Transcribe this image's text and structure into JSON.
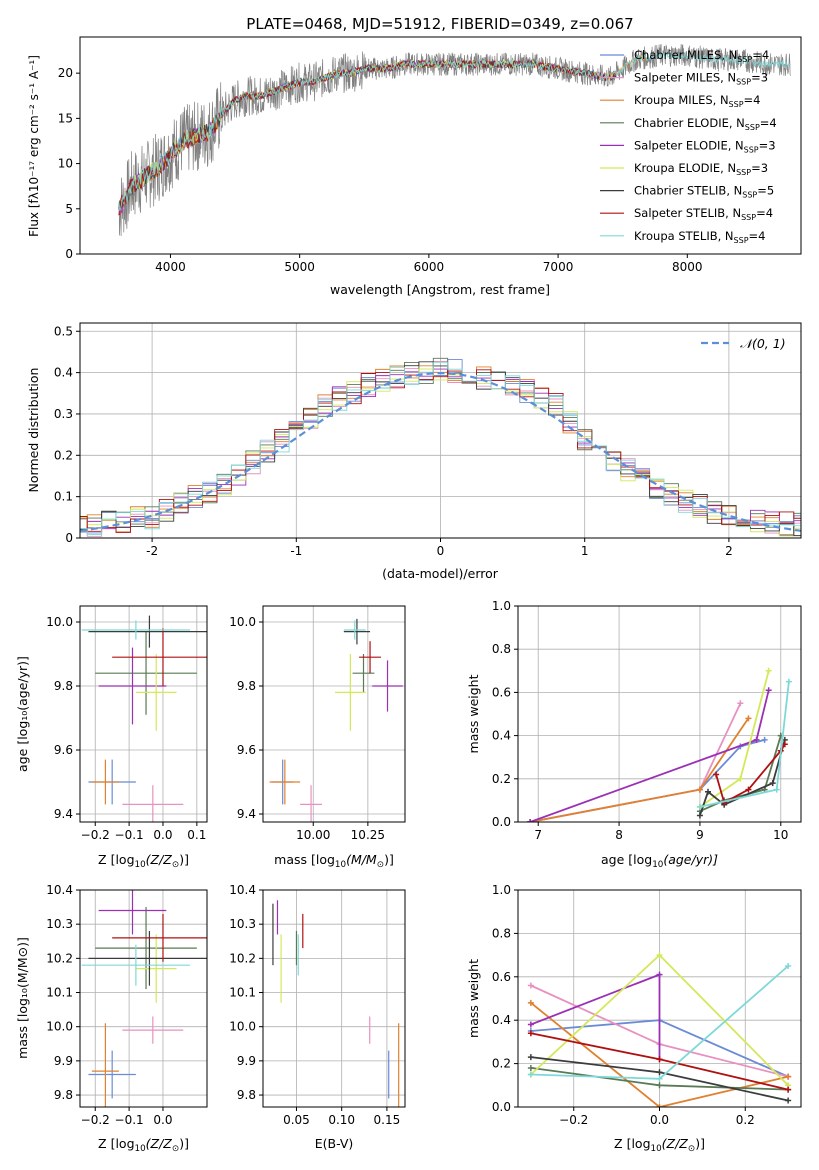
{
  "figure": {
    "title": "PLATE=0468, MJD=51912, FIBERID=0349, z=0.067"
  },
  "models": [
    {
      "label": "Chabrier MILES, N$_{SSP}$=4",
      "main": "Chabrier MILES, N",
      "sub": "SSP",
      "tail": "=4",
      "color": "#6b8bd6"
    },
    {
      "label": "Salpeter MILES, N$_{SSP}$=3",
      "main": "Salpeter MILES, N",
      "sub": "SSP",
      "tail": "=3",
      "color": "#e891c0"
    },
    {
      "label": "Kroupa MILES, N$_{SSP}$=4",
      "main": "Kroupa MILES, N",
      "sub": "SSP",
      "tail": "=4",
      "color": "#e0812f"
    },
    {
      "label": "Chabrier ELODIE, N$_{SSP}$=4",
      "main": "Chabrier ELODIE, N",
      "sub": "SSP",
      "tail": "=4",
      "color": "#5a7a55"
    },
    {
      "label": "Salpeter ELODIE, N$_{SSP}$=3",
      "main": "Salpeter ELODIE, N",
      "sub": "SSP",
      "tail": "=3",
      "color": "#9b30b5"
    },
    {
      "label": "Kroupa ELODIE, N$_{SSP}$=3",
      "main": "Kroupa ELODIE, N",
      "sub": "SSP",
      "tail": "=3",
      "color": "#d4e85a"
    },
    {
      "label": "Chabrier STELIB, N$_{SSP}$=5",
      "main": "Chabrier STELIB, N",
      "sub": "SSP",
      "tail": "=5",
      "color": "#3c3c3c"
    },
    {
      "label": "Salpeter STELIB, N$_{SSP}$=4",
      "main": "Salpeter STELIB, N",
      "sub": "SSP",
      "tail": "=4",
      "color": "#b01010"
    },
    {
      "label": "Kroupa STELIB, N$_{SSP}$=4",
      "main": "Kroupa STELIB, N",
      "sub": "SSP",
      "tail": "=4",
      "color": "#7fd8d8"
    }
  ],
  "chart_data": [
    {
      "type": "line",
      "panel": "spectrum",
      "xlabel": "wavelength [Angstrom, rest frame]",
      "ylabel": "Flux [fλ10⁻¹⁷ erg cm⁻² s⁻¹ A⁻¹]",
      "xlim": [
        3300,
        8880
      ],
      "ylim": [
        0,
        24
      ],
      "xticks": [
        4000,
        5000,
        6000,
        7000,
        8000
      ],
      "yticks": [
        0,
        5,
        10,
        15,
        20
      ],
      "grid": false,
      "legend": "right",
      "observed_color": "#808080",
      "continuum": {
        "x": [
          3600,
          3650,
          3700,
          3800,
          3900,
          4000,
          4100,
          4200,
          4300,
          4400,
          4500,
          4600,
          4700,
          4800,
          4900,
          5000,
          5100,
          5200,
          5300,
          5400,
          5500,
          5600,
          5700,
          5800,
          5900,
          6000,
          6200,
          6400,
          6600,
          6800,
          7000,
          7200,
          7400,
          7600,
          7800,
          8000,
          8200,
          8400,
          8600
        ],
        "y": [
          5.0,
          6.0,
          7.5,
          8.5,
          9.5,
          11.0,
          12.5,
          13.0,
          13.5,
          15.5,
          17.0,
          17.5,
          17.5,
          18.0,
          18.5,
          19.0,
          19.0,
          19.5,
          20.0,
          20.0,
          20.5,
          20.5,
          20.5,
          21.0,
          21.0,
          21.0,
          21.0,
          21.0,
          21.0,
          21.0,
          20.5,
          20.0,
          19.5,
          21.5,
          22.0,
          22.0,
          21.5,
          21.5,
          21.0
        ]
      },
      "observed_wavelength_range": [
        3600,
        8800
      ]
    },
    {
      "type": "line",
      "panel": "residuals",
      "xlabel": "(data-model)/error",
      "ylabel": "Normed distribution",
      "xlim": [
        -2.5,
        2.5
      ],
      "ylim": [
        0,
        0.52
      ],
      "xticks": [
        -2,
        -1,
        0,
        1,
        2
      ],
      "yticks": [
        0.0,
        0.1,
        0.2,
        0.3,
        0.4,
        0.5
      ],
      "grid": true,
      "legend": "top-right",
      "reference": {
        "name": "𝒩(0, 1)",
        "mean": 0,
        "sigma": 1,
        "color": "#5b8fd9"
      },
      "bin_width": 0.1,
      "histogram_envelope": {
        "x": [
          -2.5,
          -2.0,
          -1.5,
          -1.0,
          -0.8,
          -0.5,
          -0.3,
          0.0,
          0.3,
          0.5,
          0.8,
          1.0,
          1.5,
          2.0,
          2.5
        ],
        "y": [
          0.03,
          0.05,
          0.13,
          0.26,
          0.32,
          0.37,
          0.39,
          0.41,
          0.39,
          0.37,
          0.32,
          0.24,
          0.12,
          0.05,
          0.03
        ]
      }
    },
    {
      "type": "scatter",
      "panel": "Z-age",
      "xlabel_main": "Z [log",
      "xlabel_sub": "10",
      "xlabel_tail": "(Z/Z",
      "xlabel_sun": "⊙",
      "xlabel_end": ")]",
      "ylabel": "age  [log₁₀(age/yr)]",
      "xlim": [
        -0.245,
        0.13
      ],
      "ylim": [
        9.375,
        10.05
      ],
      "xticks": [
        -0.2,
        -0.1,
        0.0,
        0.1
      ],
      "xticklabels": [
        "−0.2",
        "−0.1",
        "0.0",
        "0.1"
      ],
      "yticks": [
        9.4,
        9.6,
        9.8,
        10.0
      ],
      "yticklabels": [
        "9.4",
        "9.6",
        "9.8",
        "10.0"
      ],
      "grid": true,
      "points": [
        {
          "model": 0,
          "x": -0.15,
          "y": 9.5,
          "xerr": 0.07,
          "yerr": 0.07
        },
        {
          "model": 1,
          "x": -0.03,
          "y": 9.43,
          "xerr": 0.09,
          "yerr": 0.06
        },
        {
          "model": 2,
          "x": -0.17,
          "y": 9.5,
          "xerr": 0.04,
          "yerr": 0.07
        },
        {
          "model": 3,
          "x": -0.05,
          "y": 9.84,
          "xerr": 0.15,
          "yerr": 0.13
        },
        {
          "model": 4,
          "x": -0.09,
          "y": 9.8,
          "xerr": 0.1,
          "yerr": 0.12
        },
        {
          "model": 5,
          "x": -0.02,
          "y": 9.78,
          "xerr": 0.06,
          "yerr": 0.12
        },
        {
          "model": 6,
          "x": -0.04,
          "y": 9.97,
          "xerr": 0.18,
          "yerr": 0.05
        },
        {
          "model": 7,
          "x": 0.0,
          "y": 9.89,
          "xerr": 0.15,
          "yerr": 0.09
        },
        {
          "model": 8,
          "x": -0.08,
          "y": 9.975,
          "xerr": 0.16,
          "yerr": 0.03
        }
      ]
    },
    {
      "type": "scatter",
      "panel": "mass-age",
      "xlabel_main": "mass [log",
      "xlabel_sub": "10",
      "xlabel_tail": "(M/M",
      "xlabel_sun": "⊙",
      "xlabel_end": ")]",
      "ylabel": "",
      "xlim": [
        9.77,
        10.42
      ],
      "ylim": [
        9.375,
        10.05
      ],
      "xticks": [
        10.0,
        10.25
      ],
      "xticklabels": [
        "10.00",
        "10.25"
      ],
      "yticks": [
        9.4,
        9.6,
        9.8,
        10.0
      ],
      "yticklabels": [
        "9.4",
        "9.6",
        "9.8",
        "10.0"
      ],
      "grid": true,
      "points": [
        {
          "model": 0,
          "x": 9.86,
          "y": 9.5,
          "xerr": 0.05,
          "yerr": 0.07
        },
        {
          "model": 1,
          "x": 9.99,
          "y": 9.43,
          "xerr": 0.05,
          "yerr": 0.06
        },
        {
          "model": 2,
          "x": 9.87,
          "y": 9.5,
          "xerr": 0.07,
          "yerr": 0.07
        },
        {
          "model": 3,
          "x": 10.23,
          "y": 9.84,
          "xerr": 0.05,
          "yerr": 0.06
        },
        {
          "model": 4,
          "x": 10.34,
          "y": 9.8,
          "xerr": 0.07,
          "yerr": 0.08
        },
        {
          "model": 5,
          "x": 10.17,
          "y": 9.78,
          "xerr": 0.07,
          "yerr": 0.12
        },
        {
          "model": 6,
          "x": 10.2,
          "y": 9.97,
          "xerr": 0.06,
          "yerr": 0.04
        },
        {
          "model": 7,
          "x": 10.26,
          "y": 9.89,
          "xerr": 0.05,
          "yerr": 0.05
        },
        {
          "model": 8,
          "x": 10.19,
          "y": 9.975,
          "xerr": 0.05,
          "yerr": 0.03
        }
      ]
    },
    {
      "type": "line",
      "panel": "age-weight",
      "xlabel_main": "age  [log",
      "xlabel_sub": "10",
      "xlabel_tail": "(age/yr)]",
      "ylabel": "mass weight",
      "xlim": [
        6.75,
        10.25
      ],
      "ylim": [
        0,
        1.0
      ],
      "xticks": [
        7,
        8,
        9,
        10
      ],
      "xticklabels": [
        "7",
        "8",
        "9",
        "10"
      ],
      "yticks": [
        0.0,
        0.2,
        0.4,
        0.6,
        0.8,
        1.0
      ],
      "yticklabels": [
        "0.0",
        "0.2",
        "0.4",
        "0.6",
        "0.8",
        "1.0"
      ],
      "grid": true,
      "series": [
        {
          "model": 0,
          "x": [
            6.9,
            9.0,
            9.5,
            9.8
          ],
          "y": [
            0.0,
            0.15,
            0.35,
            0.38
          ]
        },
        {
          "model": 1,
          "x": [
            6.9,
            9.0,
            9.5
          ],
          "y": [
            0.0,
            0.15,
            0.55
          ]
        },
        {
          "model": 2,
          "x": [
            6.9,
            9.0,
            9.6
          ],
          "y": [
            0.0,
            0.15,
            0.48
          ]
        },
        {
          "model": 3,
          "x": [
            9.0,
            9.3,
            9.8,
            10.0
          ],
          "y": [
            0.05,
            0.1,
            0.15,
            0.4
          ]
        },
        {
          "model": 4,
          "x": [
            6.9,
            9.7,
            9.85
          ],
          "y": [
            0.0,
            0.38,
            0.61
          ]
        },
        {
          "model": 5,
          "x": [
            9.0,
            9.5,
            9.85
          ],
          "y": [
            0.07,
            0.2,
            0.7
          ]
        },
        {
          "model": 6,
          "x": [
            9.0,
            9.1,
            9.3,
            9.9,
            10.05
          ],
          "y": [
            0.03,
            0.14,
            0.08,
            0.18,
            0.38
          ]
        },
        {
          "model": 7,
          "x": [
            9.2,
            9.3,
            9.6,
            10.0,
            10.05
          ],
          "y": [
            0.22,
            0.09,
            0.15,
            0.33,
            0.36
          ]
        },
        {
          "model": 8,
          "x": [
            9.0,
            9.95,
            10.1
          ],
          "y": [
            0.07,
            0.15,
            0.65
          ]
        }
      ]
    },
    {
      "type": "scatter",
      "panel": "Z-mass",
      "xlabel_main": "Z [log",
      "xlabel_sub": "10",
      "xlabel_tail": "(Z/Z",
      "xlabel_sun": "⊙",
      "xlabel_end": ")]",
      "ylabel": "mass [log₁₀(M/M⊙)]",
      "xlim": [
        -0.245,
        0.13
      ],
      "ylim": [
        9.765,
        10.4
      ],
      "xticks": [
        -0.2,
        -0.1,
        0.0
      ],
      "xticklabels": [
        "−0.2",
        "−0.1",
        "0.0"
      ],
      "yticks": [
        9.8,
        9.9,
        10.0,
        10.1,
        10.2,
        10.3,
        10.4
      ],
      "yticklabels": [
        "9.8",
        "9.9",
        "10.0",
        "10.1",
        "10.2",
        "10.3",
        "10.4"
      ],
      "grid": true,
      "points": [
        {
          "model": 0,
          "x": -0.15,
          "y": 9.86,
          "xerr": 0.07,
          "yerr": 0.07
        },
        {
          "model": 1,
          "x": -0.03,
          "y": 9.99,
          "xerr": 0.09,
          "yerr": 0.04
        },
        {
          "model": 2,
          "x": -0.17,
          "y": 9.87,
          "xerr": 0.04,
          "yerr": 0.14
        },
        {
          "model": 3,
          "x": -0.05,
          "y": 10.23,
          "xerr": 0.15,
          "yerr": 0.12
        },
        {
          "model": 4,
          "x": -0.09,
          "y": 10.34,
          "xerr": 0.1,
          "yerr": 0.07
        },
        {
          "model": 5,
          "x": -0.02,
          "y": 10.17,
          "xerr": 0.06,
          "yerr": 0.1
        },
        {
          "model": 6,
          "x": -0.04,
          "y": 10.2,
          "xerr": 0.18,
          "yerr": 0.08
        },
        {
          "model": 7,
          "x": 0.0,
          "y": 10.26,
          "xerr": 0.15,
          "yerr": 0.07
        },
        {
          "model": 8,
          "x": -0.08,
          "y": 10.18,
          "xerr": 0.16,
          "yerr": 0.06
        }
      ]
    },
    {
      "type": "scatter",
      "panel": "EBV-mass",
      "xlabel": "E(B-V)",
      "ylabel": "",
      "xlim": [
        0.013,
        0.17
      ],
      "ylim": [
        9.765,
        10.4
      ],
      "xticks": [
        0.05,
        0.1,
        0.15
      ],
      "xticklabels": [
        "0.05",
        "0.10",
        "0.15"
      ],
      "yticks": [
        9.8,
        9.9,
        10.0,
        10.1,
        10.2,
        10.3,
        10.4
      ],
      "yticklabels": [
        "9.8",
        "9.9",
        "10.0",
        "10.1",
        "10.2",
        "10.3",
        "10.4"
      ],
      "grid": true,
      "points": [
        {
          "model": 0,
          "x": 0.152,
          "y": 9.86,
          "xerr": 0.0,
          "yerr": 0.07
        },
        {
          "model": 1,
          "x": 0.131,
          "y": 9.99,
          "xerr": 0.0,
          "yerr": 0.04
        },
        {
          "model": 2,
          "x": 0.163,
          "y": 9.87,
          "xerr": 0.0,
          "yerr": 0.14
        },
        {
          "model": 3,
          "x": 0.05,
          "y": 10.23,
          "xerr": 0.0,
          "yerr": 0.05
        },
        {
          "model": 4,
          "x": 0.029,
          "y": 10.32,
          "xerr": 0.0,
          "yerr": 0.05
        },
        {
          "model": 5,
          "x": 0.033,
          "y": 10.17,
          "xerr": 0.0,
          "yerr": 0.1
        },
        {
          "model": 6,
          "x": 0.024,
          "y": 10.27,
          "xerr": 0.0,
          "yerr": 0.09
        },
        {
          "model": 7,
          "x": 0.057,
          "y": 10.28,
          "xerr": 0.0,
          "yerr": 0.05
        },
        {
          "model": 8,
          "x": 0.052,
          "y": 10.21,
          "xerr": 0.0,
          "yerr": 0.06
        }
      ]
    },
    {
      "type": "line",
      "panel": "Z-weight",
      "xlabel_main": "Z [log",
      "xlabel_sub": "10",
      "xlabel_tail": "(Z/Z",
      "xlabel_sun": "⊙",
      "xlabel_end": ")]",
      "ylabel": "mass weight",
      "xlim": [
        -0.33,
        0.33
      ],
      "ylim": [
        0,
        1.0
      ],
      "xticks": [
        -0.2,
        0.0,
        0.2
      ],
      "xticklabels": [
        "−0.2",
        "0.0",
        "0.2"
      ],
      "yticks": [
        0.0,
        0.2,
        0.4,
        0.6,
        0.8,
        1.0
      ],
      "yticklabels": [
        "0.0",
        "0.2",
        "0.4",
        "0.6",
        "0.8",
        "1.0"
      ],
      "grid": true,
      "series": [
        {
          "model": 0,
          "x": [
            -0.3,
            0.0,
            0.3
          ],
          "y": [
            0.35,
            0.4,
            0.14
          ]
        },
        {
          "model": 1,
          "x": [
            -0.3,
            0.0,
            0.3
          ],
          "y": [
            0.56,
            0.29,
            0.14
          ]
        },
        {
          "model": 2,
          "x": [
            -0.3,
            0.0,
            0.3
          ],
          "y": [
            0.48,
            0.0,
            0.14
          ]
        },
        {
          "model": 3,
          "x": [
            -0.3,
            0.0,
            0.3
          ],
          "y": [
            0.18,
            0.1,
            0.08
          ]
        },
        {
          "model": 4,
          "x": [
            -0.3,
            0.0,
            0.0
          ],
          "y": [
            0.38,
            0.61,
            0.22
          ]
        },
        {
          "model": 5,
          "x": [
            -0.3,
            0.0,
            0.3
          ],
          "y": [
            0.15,
            0.7,
            0.1
          ]
        },
        {
          "model": 6,
          "x": [
            -0.3,
            0.0,
            0.3
          ],
          "y": [
            0.23,
            0.16,
            0.03
          ]
        },
        {
          "model": 7,
          "x": [
            -0.3,
            0.0,
            0.3
          ],
          "y": [
            0.34,
            0.22,
            0.08
          ]
        },
        {
          "model": 8,
          "x": [
            -0.3,
            0.0,
            0.3
          ],
          "y": [
            0.15,
            0.13,
            0.65
          ]
        }
      ]
    }
  ]
}
